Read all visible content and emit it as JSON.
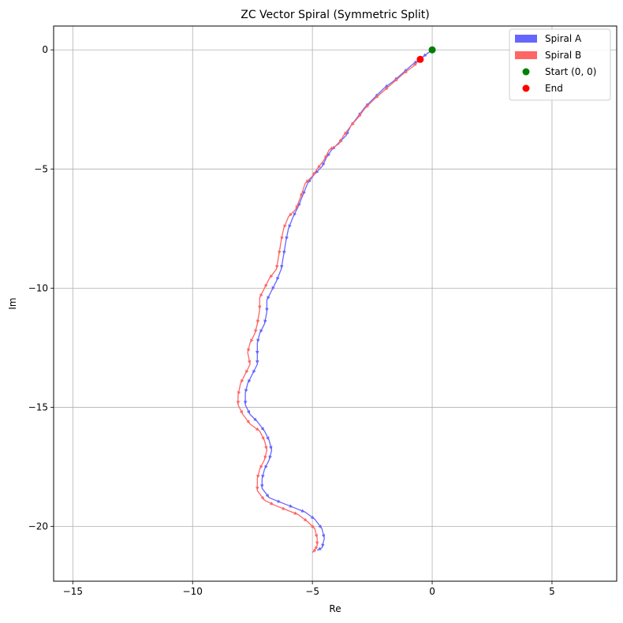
{
  "chart_data": {
    "type": "line",
    "title": "ZC Vector Spiral (Symmetric Split)",
    "xlabel": "Re",
    "ylabel": "Im",
    "xlim": [
      -15.8,
      7.7
    ],
    "ylim": [
      -22.3,
      1.0
    ],
    "x_ticks": [
      -15,
      -10,
      -5,
      0,
      5
    ],
    "y_ticks": [
      0,
      -5,
      -10,
      -15,
      -20
    ],
    "grid": true,
    "legend_position": "top-right",
    "series": [
      {
        "name": "Spiral A",
        "color": "#6666ff",
        "points": [
          [
            0,
            0
          ],
          [
            -0.4,
            -0.3
          ],
          [
            -0.8,
            -0.6
          ],
          [
            -1.2,
            -0.95
          ],
          [
            -1.6,
            -1.3
          ],
          [
            -2.0,
            -1.6
          ],
          [
            -2.4,
            -2.0
          ],
          [
            -2.8,
            -2.4
          ],
          [
            -3.1,
            -2.8
          ],
          [
            -3.4,
            -3.2
          ],
          [
            -3.6,
            -3.6
          ],
          [
            -3.9,
            -3.9
          ],
          [
            -4.2,
            -4.2
          ],
          [
            -4.4,
            -4.5
          ],
          [
            -4.6,
            -4.9
          ],
          [
            -4.9,
            -5.2
          ],
          [
            -5.2,
            -5.6
          ],
          [
            -5.4,
            -6.1
          ],
          [
            -5.6,
            -6.6
          ],
          [
            -5.8,
            -7.0
          ],
          [
            -6.0,
            -7.5
          ],
          [
            -6.1,
            -8.0
          ],
          [
            -6.2,
            -8.6
          ],
          [
            -6.3,
            -9.2
          ],
          [
            -6.5,
            -9.7
          ],
          [
            -6.7,
            -10.1
          ],
          [
            -6.9,
            -10.5
          ],
          [
            -6.9,
            -11.0
          ],
          [
            -7.0,
            -11.5
          ],
          [
            -7.2,
            -11.9
          ],
          [
            -7.3,
            -12.3
          ],
          [
            -7.3,
            -12.8
          ],
          [
            -7.3,
            -13.2
          ],
          [
            -7.5,
            -13.6
          ],
          [
            -7.7,
            -14.0
          ],
          [
            -7.8,
            -14.4
          ],
          [
            -7.8,
            -14.9
          ],
          [
            -7.6,
            -15.3
          ],
          [
            -7.3,
            -15.6
          ],
          [
            -7.0,
            -16.0
          ],
          [
            -6.8,
            -16.4
          ],
          [
            -6.7,
            -16.8
          ],
          [
            -6.8,
            -17.2
          ],
          [
            -7.0,
            -17.6
          ],
          [
            -7.1,
            -18.0
          ],
          [
            -7.1,
            -18.4
          ],
          [
            -6.8,
            -18.8
          ],
          [
            -6.3,
            -19.0
          ],
          [
            -5.8,
            -19.2
          ],
          [
            -5.3,
            -19.4
          ],
          [
            -4.9,
            -19.7
          ],
          [
            -4.6,
            -20.1
          ],
          [
            -4.5,
            -20.5
          ],
          [
            -4.6,
            -20.9
          ],
          [
            -4.8,
            -21.0
          ]
        ]
      },
      {
        "name": "Spiral B",
        "color": "#ff6666",
        "points": [
          [
            -0.5,
            -0.4
          ],
          [
            -0.8,
            -0.7
          ],
          [
            -1.2,
            -1.0
          ],
          [
            -1.6,
            -1.35
          ],
          [
            -2.0,
            -1.7
          ],
          [
            -2.4,
            -2.05
          ],
          [
            -2.8,
            -2.45
          ],
          [
            -3.1,
            -2.85
          ],
          [
            -3.4,
            -3.2
          ],
          [
            -3.7,
            -3.6
          ],
          [
            -3.9,
            -3.95
          ],
          [
            -4.3,
            -4.2
          ],
          [
            -4.5,
            -4.6
          ],
          [
            -4.8,
            -5.0
          ],
          [
            -5.0,
            -5.3
          ],
          [
            -5.3,
            -5.6
          ],
          [
            -5.5,
            -6.2
          ],
          [
            -5.7,
            -6.7
          ],
          [
            -6.0,
            -7.0
          ],
          [
            -6.2,
            -7.5
          ],
          [
            -6.3,
            -8.0
          ],
          [
            -6.4,
            -8.6
          ],
          [
            -6.5,
            -9.2
          ],
          [
            -6.8,
            -9.6
          ],
          [
            -7.0,
            -10.0
          ],
          [
            -7.2,
            -10.4
          ],
          [
            -7.2,
            -10.9
          ],
          [
            -7.3,
            -11.5
          ],
          [
            -7.4,
            -11.9
          ],
          [
            -7.6,
            -12.3
          ],
          [
            -7.7,
            -12.7
          ],
          [
            -7.6,
            -13.2
          ],
          [
            -7.8,
            -13.6
          ],
          [
            -8.0,
            -14.0
          ],
          [
            -8.1,
            -14.5
          ],
          [
            -8.1,
            -14.9
          ],
          [
            -7.9,
            -15.3
          ],
          [
            -7.6,
            -15.7
          ],
          [
            -7.2,
            -16.0
          ],
          [
            -7.0,
            -16.4
          ],
          [
            -6.9,
            -16.8
          ],
          [
            -7.0,
            -17.2
          ],
          [
            -7.2,
            -17.6
          ],
          [
            -7.3,
            -18.0
          ],
          [
            -7.3,
            -18.5
          ],
          [
            -7.0,
            -18.9
          ],
          [
            -6.6,
            -19.1
          ],
          [
            -6.1,
            -19.3
          ],
          [
            -5.6,
            -19.5
          ],
          [
            -5.2,
            -19.8
          ],
          [
            -4.9,
            -20.1
          ],
          [
            -4.8,
            -20.5
          ],
          [
            -4.8,
            -20.8
          ],
          [
            -4.9,
            -21.0
          ],
          [
            -5.0,
            -21.1
          ]
        ]
      }
    ],
    "markers": [
      {
        "name": "Start (0, 0)",
        "color": "#008000",
        "x": 0,
        "y": 0
      },
      {
        "name": "End",
        "color": "#ff0000",
        "x": -0.5,
        "y": -0.4
      }
    ]
  }
}
